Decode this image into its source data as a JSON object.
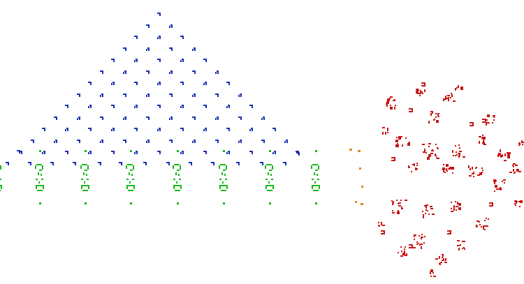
{
  "colors": {
    "background": "#ffffff",
    "gliders": "#1a2fb3",
    "guns": "#19b81a",
    "reflectors": "#e8841e",
    "debris": "#c81414"
  },
  "groups": [
    {
      "name": "glider-stream",
      "color_key": "gliders",
      "description_icon": "glider-icon"
    },
    {
      "name": "glider-guns",
      "color_key": "guns",
      "description_icon": "gun-icon"
    },
    {
      "name": "reflector-column",
      "color_key": "reflectors",
      "description_icon": "reflector-icon"
    },
    {
      "name": "debris-cluster",
      "color_key": "debris",
      "description_icon": "debris-icon"
    }
  ]
}
